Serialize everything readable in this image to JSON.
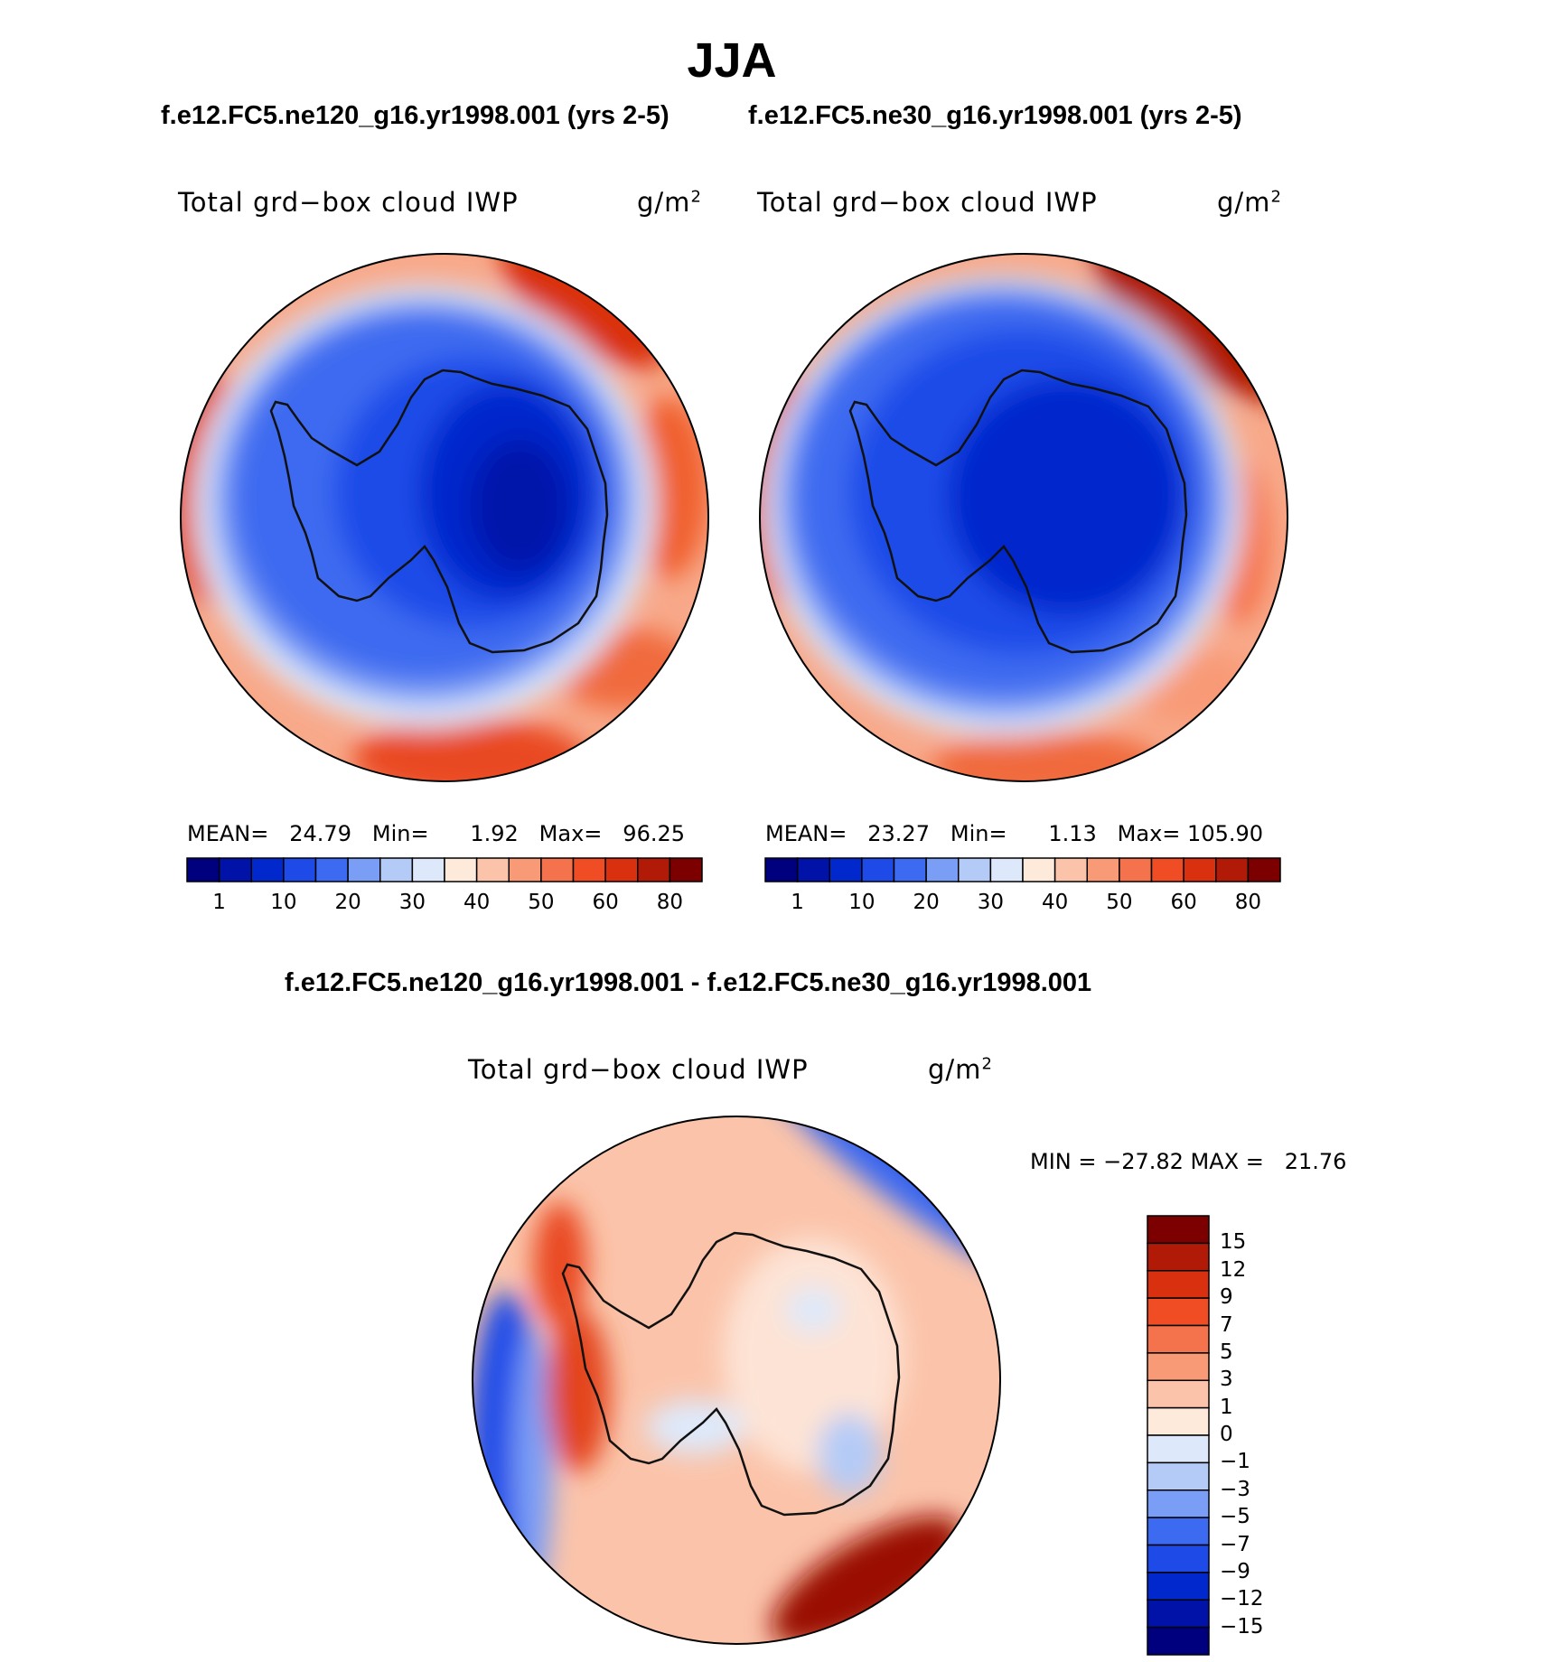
{
  "title": "JJA",
  "panels": [
    {
      "case_label": "f.e12.FC5.ne120_g16.yr1998.001 (yrs 2-5)",
      "variable": "Total grd−box cloud IWP",
      "units_base": "g/m",
      "units_exp": "2",
      "stats": {
        "mean_label": "MEAN=",
        "mean": "24.79",
        "min_label": "Min=",
        "min": "1.92",
        "max_label": "Max=",
        "max": "96.25"
      }
    },
    {
      "case_label": "f.e12.FC5.ne30_g16.yr1998.001 (yrs 2-5)",
      "variable": "Total grd−box cloud IWP",
      "units_base": "g/m",
      "units_exp": "2",
      "stats": {
        "mean_label": "MEAN=",
        "mean": "23.27",
        "min_label": "Min=",
        "min": "1.13",
        "max_label": "Max=",
        "max": "105.90"
      }
    }
  ],
  "top_colorbar": {
    "colors": [
      "#00007f",
      "#0012a8",
      "#0028cc",
      "#1e4be8",
      "#3c6af0",
      "#7a9df5",
      "#b4cbf7",
      "#dde9fb",
      "#feeadb",
      "#fbc4aa",
      "#f89a76",
      "#f5734c",
      "#f04d25",
      "#d9310f",
      "#b01a06",
      "#7c0000"
    ],
    "labels": [
      "1",
      "10",
      "20",
      "30",
      "40",
      "50",
      "60",
      "80"
    ]
  },
  "diff": {
    "title": "f.e12.FC5.ne120_g16.yr1998.001 - f.e12.FC5.ne30_g16.yr1998.001",
    "variable": "Total grd−box cloud IWP",
    "units_base": "g/m",
    "units_exp": "2",
    "minmax": "MIN = −27.82 MAX =   21.76",
    "colorbar": {
      "colors": [
        "#7c0000",
        "#b01a06",
        "#d9310f",
        "#f04d25",
        "#f5734c",
        "#f89a76",
        "#fbc4aa",
        "#feeadb",
        "#dde9fb",
        "#b4cbf7",
        "#7a9df5",
        "#3c6af0",
        "#1e4be8",
        "#0028cc",
        "#0012a8",
        "#00007f"
      ],
      "labels": [
        "15",
        "12",
        "9",
        "7",
        "5",
        "3",
        "1",
        "0",
        "−1",
        "−3",
        "−5",
        "−7",
        "−9",
        "−12",
        "−15"
      ]
    }
  }
}
